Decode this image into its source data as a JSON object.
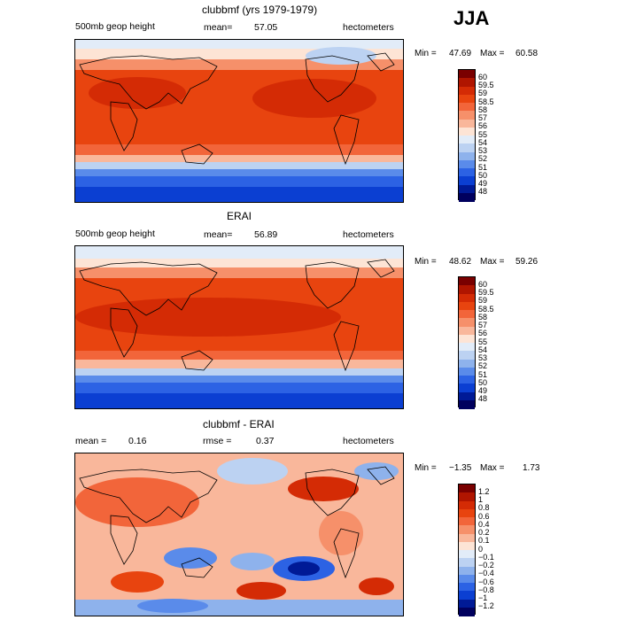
{
  "season": "JJA",
  "panels": [
    {
      "title": "clubbmf (yrs 1979-1979)",
      "left_label": "500mb geop height",
      "mean_label": "mean=",
      "mean_value": "57.05",
      "units": "hectometers",
      "min_label": "Min =",
      "min_value": "47.69",
      "max_label": "Max =",
      "max_value": "60.58",
      "legend": {
        "levels": [
          "60",
          "59.5",
          "59",
          "58.5",
          "58",
          "57",
          "56",
          "55",
          "54",
          "53",
          "52",
          "51",
          "50",
          "49",
          "48"
        ],
        "colors": [
          "#7a0000",
          "#b01500",
          "#d42b05",
          "#e8440f",
          "#f2653a",
          "#f6906a",
          "#f9b79b",
          "#fde4d5",
          "#e2ecf8",
          "#bcd2f2",
          "#8eb2ec",
          "#5a8bea",
          "#2c62e4",
          "#0b3fd2",
          "#001a96",
          "#00005e"
        ]
      }
    },
    {
      "title": "ERAI",
      "left_label": "500mb geop height",
      "mean_label": "mean=",
      "mean_value": "56.89",
      "units": "hectometers",
      "min_label": "Min =",
      "min_value": "48.62",
      "max_label": "Max =",
      "max_value": "59.26",
      "legend": {
        "levels": [
          "60",
          "59.5",
          "59",
          "58.5",
          "58",
          "57",
          "56",
          "55",
          "54",
          "53",
          "52",
          "51",
          "50",
          "49",
          "48"
        ],
        "colors": [
          "#7a0000",
          "#b01500",
          "#d42b05",
          "#e8440f",
          "#f2653a",
          "#f6906a",
          "#f9b79b",
          "#fde4d5",
          "#e2ecf8",
          "#bcd2f2",
          "#8eb2ec",
          "#5a8bea",
          "#2c62e4",
          "#0b3fd2",
          "#001a96",
          "#00005e"
        ]
      }
    },
    {
      "title": "clubbmf - ERAI",
      "left_label": "mean =",
      "mean_label": "rmse =",
      "left_value": "0.16",
      "mean_value": "0.37",
      "units": "hectometers",
      "min_label": "Min =",
      "min_value": "−1.35",
      "max_label": "Max =",
      "max_value": "1.73",
      "legend": {
        "levels": [
          "1.2",
          "1",
          "0.8",
          "0.6",
          "0.4",
          "0.2",
          "0.1",
          "0",
          "−0.1",
          "−0.2",
          "−0.4",
          "−0.6",
          "−0.8",
          "−1",
          "−1.2"
        ],
        "colors": [
          "#7a0000",
          "#b01500",
          "#d42b05",
          "#e8440f",
          "#f2653a",
          "#f6906a",
          "#f9b79b",
          "#fde4d5",
          "#e2ecf8",
          "#bcd2f2",
          "#8eb2ec",
          "#5a8bea",
          "#2c62e4",
          "#0b3fd2",
          "#001a96",
          "#00005e"
        ]
      }
    }
  ]
}
